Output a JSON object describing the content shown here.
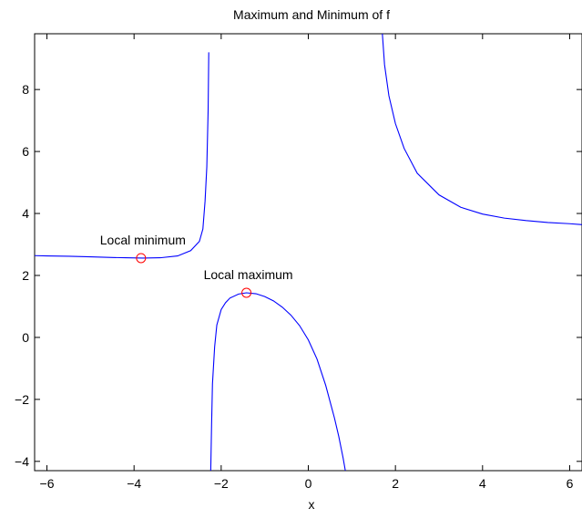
{
  "chart_data": {
    "type": "line",
    "title": "Maximum and Minimum of f",
    "xlabel": "x",
    "ylabel": "",
    "xlim": [
      -6.283,
      6.283
    ],
    "ylim": [
      -4.3,
      9.8
    ],
    "xticks": [
      -6,
      -4,
      -2,
      0,
      2,
      4,
      6
    ],
    "yticks": [
      -4,
      -2,
      0,
      2,
      4,
      6,
      8
    ],
    "tick_labels": {
      "x": [
        "−6",
        "−4",
        "−2",
        "0",
        "2",
        "4",
        "6"
      ],
      "y": [
        "−4",
        "−2",
        "0",
        "2",
        "4",
        "6",
        "8"
      ]
    },
    "grid": false,
    "line_color": "#0000ff",
    "marker_color": "#ff0000",
    "series": [
      {
        "x": [
          -6.28,
          -6.0,
          -5.5,
          -5.0,
          -4.5,
          -4.2,
          -3.8,
          -3.4,
          -3.0,
          -2.7,
          -2.5,
          -2.42,
          -2.37,
          -2.33,
          -2.3,
          -2.285
        ],
        "y": [
          2.64,
          2.63,
          2.62,
          2.6,
          2.58,
          2.57,
          2.56,
          2.57,
          2.63,
          2.8,
          3.1,
          3.5,
          4.4,
          5.5,
          7.3,
          9.2
        ]
      },
      {
        "x": [
          -2.24,
          -2.22,
          -2.2,
          -2.15,
          -2.1,
          -2.0,
          -1.9,
          -1.8,
          -1.6,
          -1.42,
          -1.2,
          -1.0,
          -0.8,
          -0.6,
          -0.4,
          -0.2,
          0.0,
          0.2,
          0.4,
          0.6,
          0.7,
          0.8,
          0.85
        ],
        "y": [
          -4.3,
          -2.8,
          -1.5,
          -0.3,
          0.4,
          0.9,
          1.12,
          1.27,
          1.4,
          1.44,
          1.41,
          1.32,
          1.18,
          0.98,
          0.72,
          0.38,
          -0.08,
          -0.7,
          -1.55,
          -2.6,
          -3.2,
          -3.9,
          -4.3
        ]
      },
      {
        "x": [
          1.7,
          1.75,
          1.85,
          2.0,
          2.2,
          2.5,
          3.0,
          3.5,
          4.0,
          4.5,
          5.0,
          5.5,
          6.0,
          6.28
        ],
        "y": [
          9.8,
          8.8,
          7.8,
          6.9,
          6.1,
          5.3,
          4.6,
          4.2,
          3.98,
          3.85,
          3.77,
          3.71,
          3.67,
          3.64
        ]
      }
    ],
    "points": [
      {
        "label": "Local minimum",
        "x": -3.84,
        "y": 2.56
      },
      {
        "label": "Local maximum",
        "x": -1.42,
        "y": 1.44
      }
    ]
  }
}
